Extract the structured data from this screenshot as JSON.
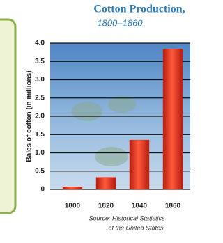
{
  "chart_data": {
    "type": "bar",
    "title": "Cotton Production,",
    "subtitle": "1800–1860",
    "y_label": "Bales of cotton (in millions)",
    "categories": [
      "1800",
      "1820",
      "1840",
      "1860"
    ],
    "values": [
      0.07,
      0.33,
      1.35,
      3.84
    ],
    "color": "#e0301e",
    "ylim": [
      0,
      4.0
    ],
    "yticks": [
      0,
      0.5,
      {
        "value": 1,
        "label": "1.0"
      },
      1.5,
      {
        "value": 2,
        "label": "2.0"
      },
      2.5,
      {
        "value": 3,
        "label": "3.0"
      },
      3.5,
      {
        "value": 4,
        "label": "4.0"
      }
    ],
    "grid": true,
    "source": [
      "Source: Historical Statistics",
      "of the United States"
    ]
  }
}
